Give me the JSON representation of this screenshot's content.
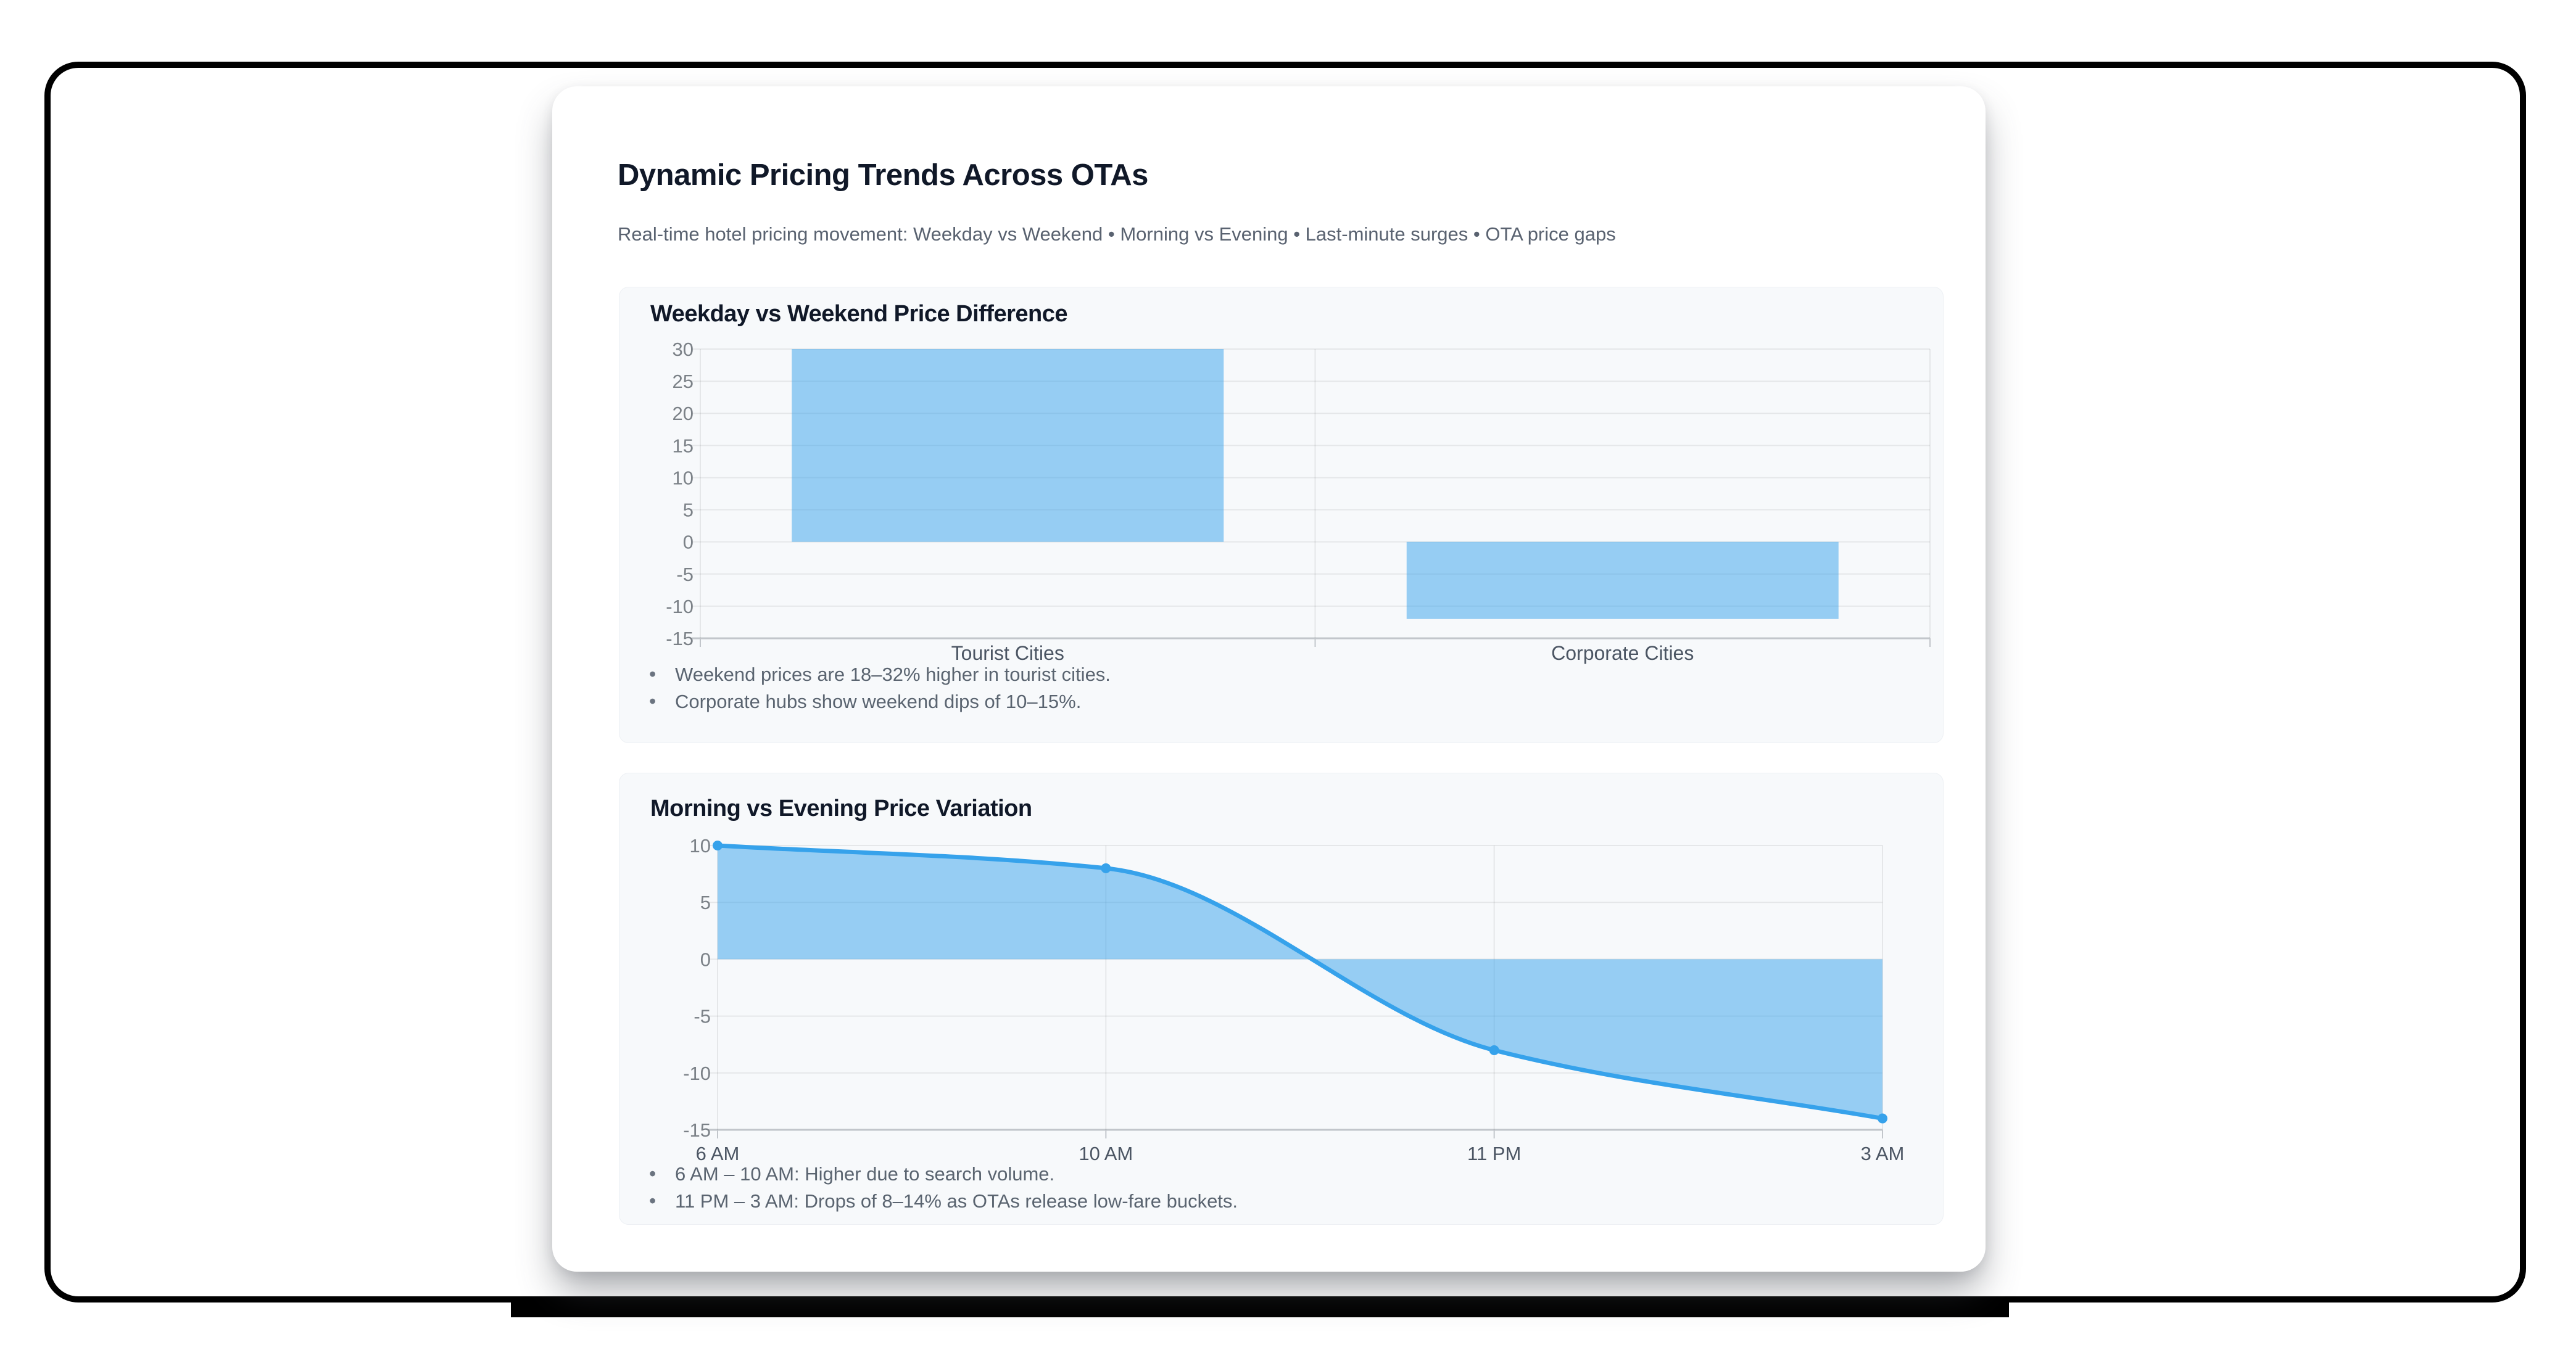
{
  "header": {
    "title": "Dynamic Pricing Trends Across OTAs",
    "subtitle": "Real-time hotel pricing movement: Weekday vs Weekend • Morning vs Evening • Last-minute surges • OTA price gaps"
  },
  "colors": {
    "line_blue": "#36a2eb",
    "fill_blue": "rgba(54,162,235,0.5)",
    "grid": "rgba(0,0,0,0.07)",
    "axis_border": "#c2c6cb",
    "tick_text": "#7b8187",
    "label_text": "#4b5563",
    "frame_black": "#000000",
    "panel_bg": "#f7f9fb"
  },
  "chart_data": [
    {
      "type": "bar",
      "title": "Weekday vs Weekend Price Difference",
      "categories": [
        "Tourist Cities",
        "Corporate Cities"
      ],
      "values": [
        30,
        -12
      ],
      "ylabel": "",
      "xlabel": "",
      "ylim": [
        -15,
        30
      ],
      "ytick_step": 5,
      "grid": true,
      "legend": "none",
      "notes": [
        "Weekend prices are 18–32% higher in tourist cities.",
        "Corporate hubs show weekend dips of 10–15%."
      ]
    },
    {
      "type": "area",
      "title": "Morning vs Evening Price Variation",
      "x": [
        "6 AM",
        "10 AM",
        "11 PM",
        "3 AM"
      ],
      "values": [
        10,
        8,
        -8,
        -14
      ],
      "ylabel": "",
      "xlabel": "",
      "ylim": [
        -15,
        10
      ],
      "ytick_step": 5,
      "fill_to": 0,
      "grid": true,
      "legend": "none",
      "notes": [
        "6 AM – 10 AM: Higher due to search volume.",
        "11 PM – 3 AM: Drops of 8–14% as OTAs release low-fare buckets."
      ]
    }
  ]
}
